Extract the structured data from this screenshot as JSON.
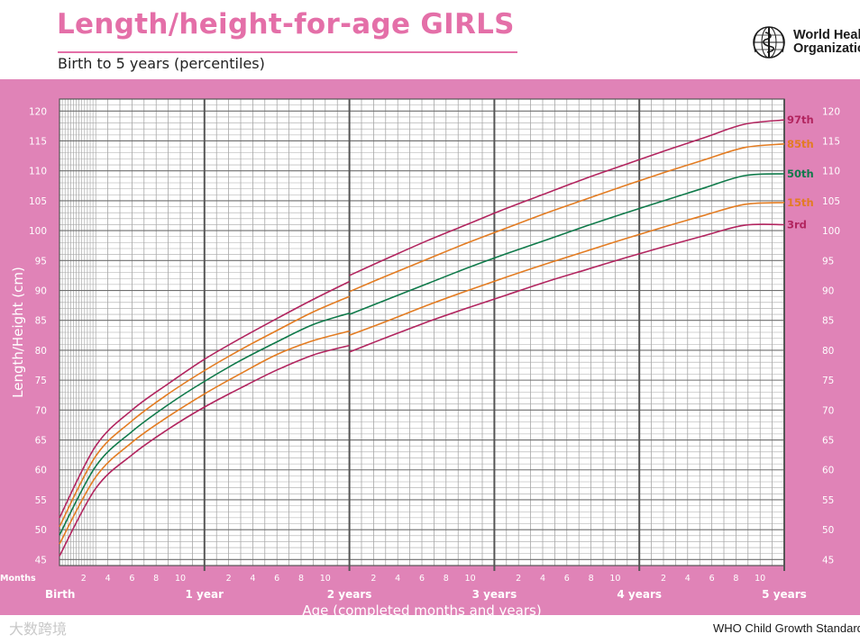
{
  "header": {
    "title": "Length/height-for-age GIRLS",
    "subtitle": "Birth to 5 years (percentiles)",
    "org_name_line1": "World Healt",
    "org_name_line2": "Organizatio"
  },
  "footer": {
    "credit": "WHO Child Growth Standard",
    "watermark": "大数跨境"
  },
  "colors": {
    "brand_pink": "#e46fa8",
    "panel": "#e083b7",
    "p97": "#b2255f",
    "p85": "#e37c22",
    "p50": "#0f7a4a",
    "p15": "#e37c22",
    "p3": "#b2255f"
  },
  "chart_data": {
    "type": "line",
    "title": "Length/height-for-age GIRLS",
    "subtitle": "Birth to 5 years (percentiles)",
    "xlabel": "Age (completed months and years)",
    "ylabel": "Length/Height (cm)",
    "xlim": [
      0,
      60
    ],
    "ylim": [
      44,
      122
    ],
    "y_ticks": [
      45,
      50,
      55,
      60,
      65,
      70,
      75,
      80,
      85,
      90,
      95,
      100,
      105,
      110,
      115,
      120
    ],
    "months_axis_label": "Months",
    "x_month_ticks": [
      "2",
      "4",
      "6",
      "8",
      "10"
    ],
    "x_year_labels": [
      {
        "month": 0,
        "label": "Birth"
      },
      {
        "month": 12,
        "label": "1 year"
      },
      {
        "month": 24,
        "label": "2 years"
      },
      {
        "month": 36,
        "label": "3 years"
      },
      {
        "month": 48,
        "label": "4 years"
      },
      {
        "month": 60,
        "label": "5 years"
      }
    ],
    "x": [
      0,
      3,
      6,
      9,
      12,
      15,
      18,
      21,
      24,
      27,
      30,
      33,
      36,
      39,
      42,
      45,
      48,
      51,
      54,
      57,
      60
    ],
    "series": [
      {
        "name": "97th",
        "color_key": "p97",
        "values_0_24": [
          52.0,
          64.0,
          70.0,
          74.4,
          78.5,
          82.0,
          85.3,
          88.5,
          91.5
        ],
        "values_24_60": [
          92.5,
          95.5,
          98.4,
          101.1,
          103.8,
          106.3,
          108.8,
          111.1,
          113.4,
          115.6,
          117.8,
          118.5
        ]
      },
      {
        "name": "85th",
        "color_key": "p85",
        "values_0_24": [
          50.5,
          62.3,
          68.2,
          72.7,
          76.6,
          80.1,
          83.3,
          86.4,
          89.0
        ],
        "values_24_60": [
          89.8,
          92.6,
          95.3,
          98.0,
          100.5,
          103.0,
          105.3,
          107.6,
          109.8,
          111.9,
          113.9,
          114.5
        ]
      },
      {
        "name": "50th",
        "color_key": "p50",
        "values_0_24": [
          49.1,
          60.6,
          66.4,
          70.9,
          74.8,
          78.3,
          81.4,
          84.3,
          86.2
        ],
        "values_24_60": [
          86.0,
          88.6,
          91.2,
          93.8,
          96.2,
          98.5,
          100.8,
          103.0,
          105.1,
          107.2,
          109.2,
          109.5
        ]
      },
      {
        "name": "15th",
        "color_key": "p15",
        "values_0_24": [
          47.6,
          58.8,
          64.6,
          68.9,
          72.7,
          76.1,
          79.3,
          81.6,
          83.2
        ],
        "values_24_60": [
          82.5,
          85.0,
          87.6,
          90.0,
          92.3,
          94.5,
          96.6,
          98.7,
          100.7,
          102.6,
          104.4,
          104.7
        ]
      },
      {
        "name": "3rd",
        "color_key": "p3",
        "values_0_24": [
          45.6,
          56.9,
          62.5,
          66.8,
          70.5,
          73.7,
          76.7,
          79.2,
          80.8
        ],
        "values_24_60": [
          79.7,
          82.3,
          84.8,
          87.1,
          89.3,
          91.5,
          93.5,
          95.5,
          97.4,
          99.2,
          100.9,
          101.0
        ]
      }
    ],
    "legend_placement": "right, at line ends"
  }
}
